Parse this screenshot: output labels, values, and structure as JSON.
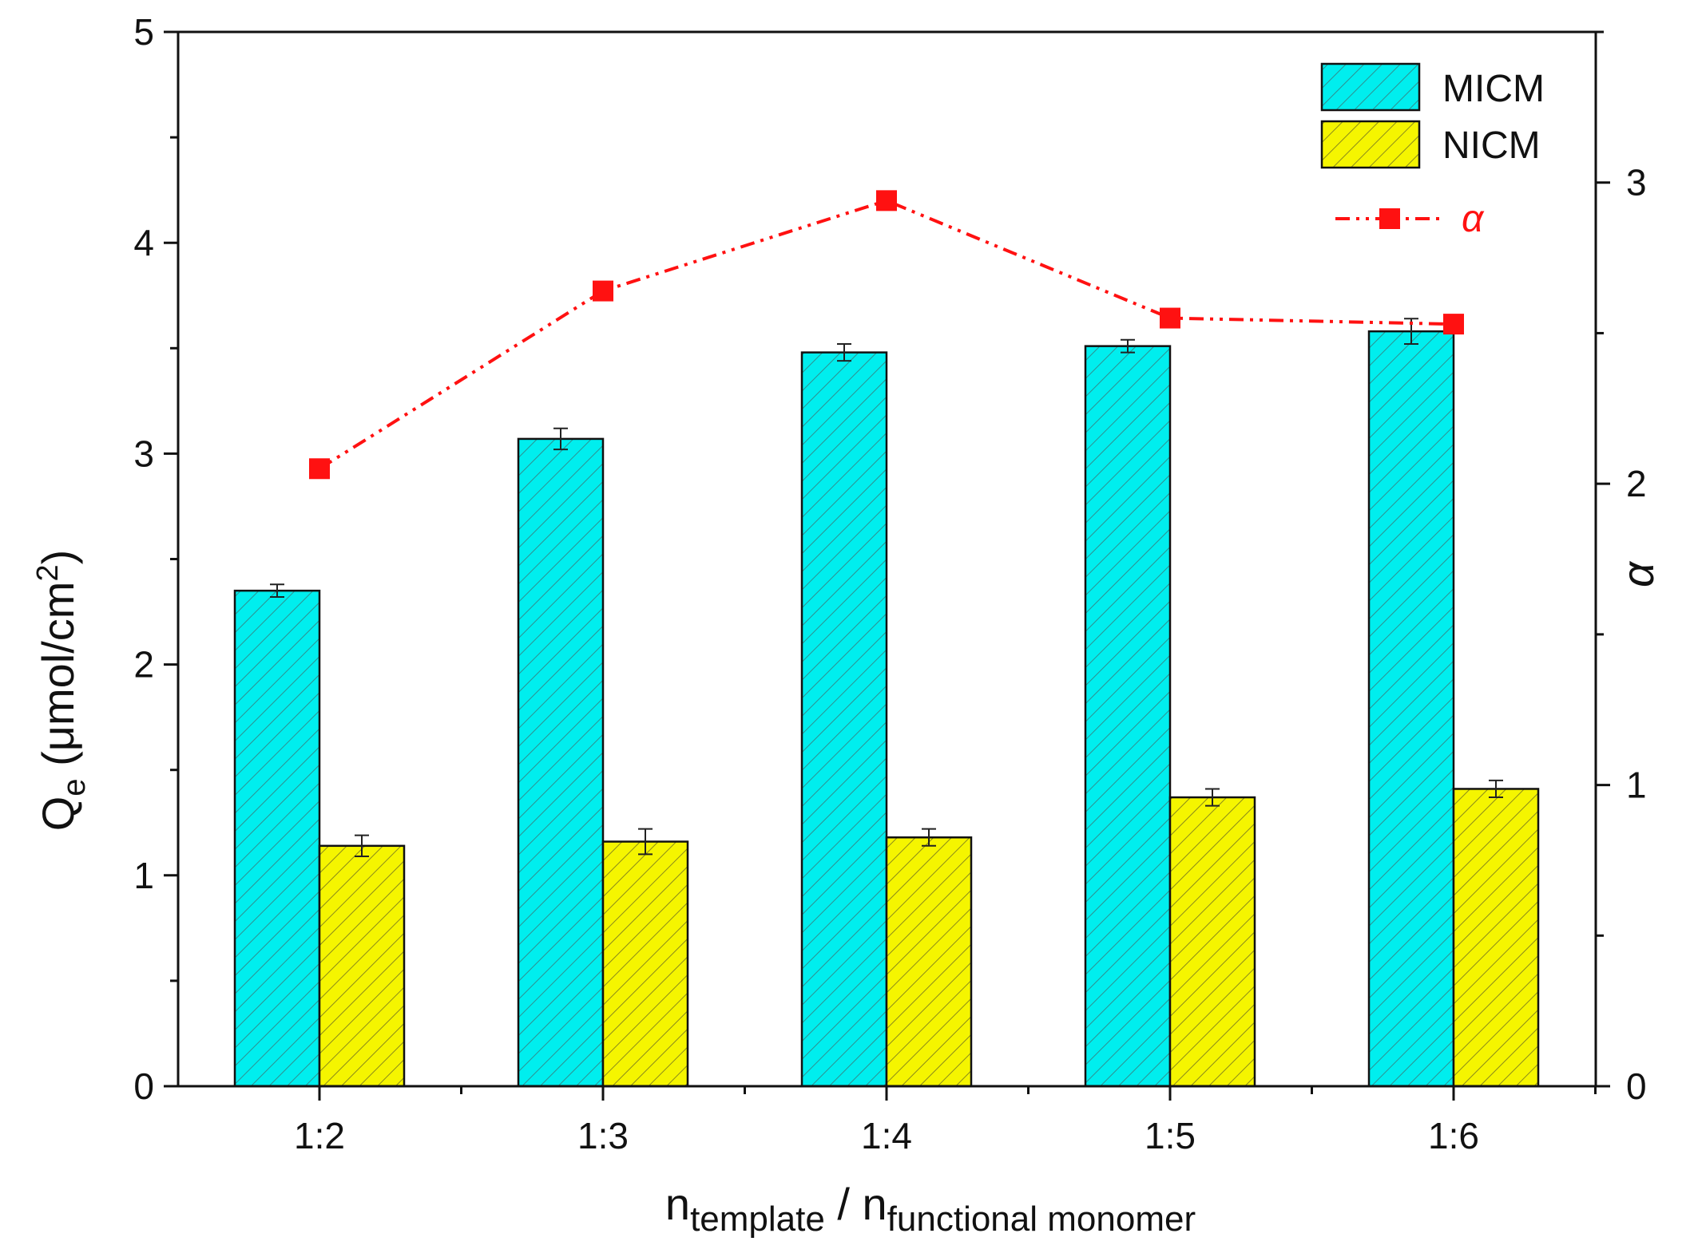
{
  "chart_data": {
    "type": "bar",
    "categories": [
      "1:2",
      "1:3",
      "1:4",
      "1:5",
      "1:6"
    ],
    "series": [
      {
        "name": "MICM",
        "axis": "left",
        "values": [
          2.35,
          3.07,
          3.48,
          3.51,
          3.58
        ],
        "errors": [
          0.03,
          0.05,
          0.04,
          0.03,
          0.06
        ],
        "color": "#00eeee",
        "pattern": "hatched"
      },
      {
        "name": "NICM",
        "axis": "left",
        "values": [
          1.14,
          1.16,
          1.18,
          1.37,
          1.41
        ],
        "errors": [
          0.05,
          0.06,
          0.04,
          0.04,
          0.04
        ],
        "color": "#f5f500",
        "pattern": "hatched"
      }
    ],
    "line_series": {
      "name": "α",
      "axis": "right",
      "values": [
        2.05,
        2.64,
        2.94,
        2.55,
        2.53
      ],
      "color": "#ff1111",
      "style": "dash-dot-dot",
      "marker": "square"
    },
    "ylabel": {
      "main": "Q",
      "sub": "e",
      "units": " (μmol/cm",
      "sup": "2",
      "close": ")"
    },
    "y2label": "α",
    "xlabel": {
      "n1": "n",
      "sub1": "template",
      "sep": " / ",
      "n2": "n",
      "sub2": "functional monomer"
    },
    "ylim": [
      0,
      5
    ],
    "y2lim": [
      0,
      3.5
    ],
    "yticks": [
      0,
      1,
      2,
      3,
      4,
      5
    ],
    "y2ticks": [
      0,
      1,
      2,
      3
    ],
    "legend": {
      "position": "top-right",
      "entries": [
        {
          "label": "MICM",
          "kind": "bar"
        },
        {
          "label": "NICM",
          "kind": "bar"
        },
        {
          "label": "α",
          "kind": "line"
        }
      ]
    }
  }
}
